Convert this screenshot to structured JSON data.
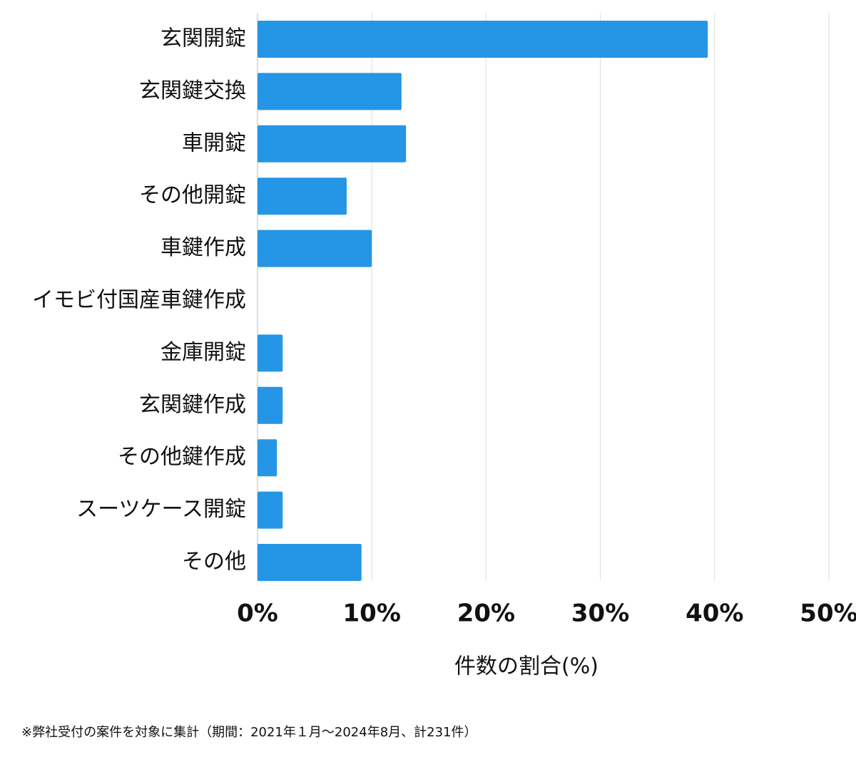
{
  "chart_data": {
    "type": "bar",
    "orientation": "horizontal",
    "categories": [
      "玄関開錠",
      "玄関鍵交換",
      "車開錠",
      "その他開錠",
      "車鍵作成",
      "イモビ付国産車鍵作成",
      "金庫開錠",
      "玄関鍵作成",
      "その他鍵作成",
      "スーツケース開錠",
      "その他"
    ],
    "values": [
      39.4,
      12.6,
      13.0,
      7.8,
      10.0,
      0,
      2.2,
      2.2,
      1.7,
      2.2,
      9.1
    ],
    "color": "#2595e6",
    "xlim": [
      0,
      50
    ],
    "xticks": [
      {
        "value": 0,
        "label": "0%"
      },
      {
        "value": 10,
        "label": "10%"
      },
      {
        "value": 20,
        "label": "20%"
      },
      {
        "value": 30,
        "label": "30%"
      },
      {
        "value": 40,
        "label": "40%"
      },
      {
        "value": 50,
        "label": "50%"
      }
    ],
    "xlabel": "件数の割合(%)",
    "grid": true,
    "footnote": "※弊社受付の案件を対象に集計（期間：2021年１月〜2024年8月、計231件）"
  }
}
